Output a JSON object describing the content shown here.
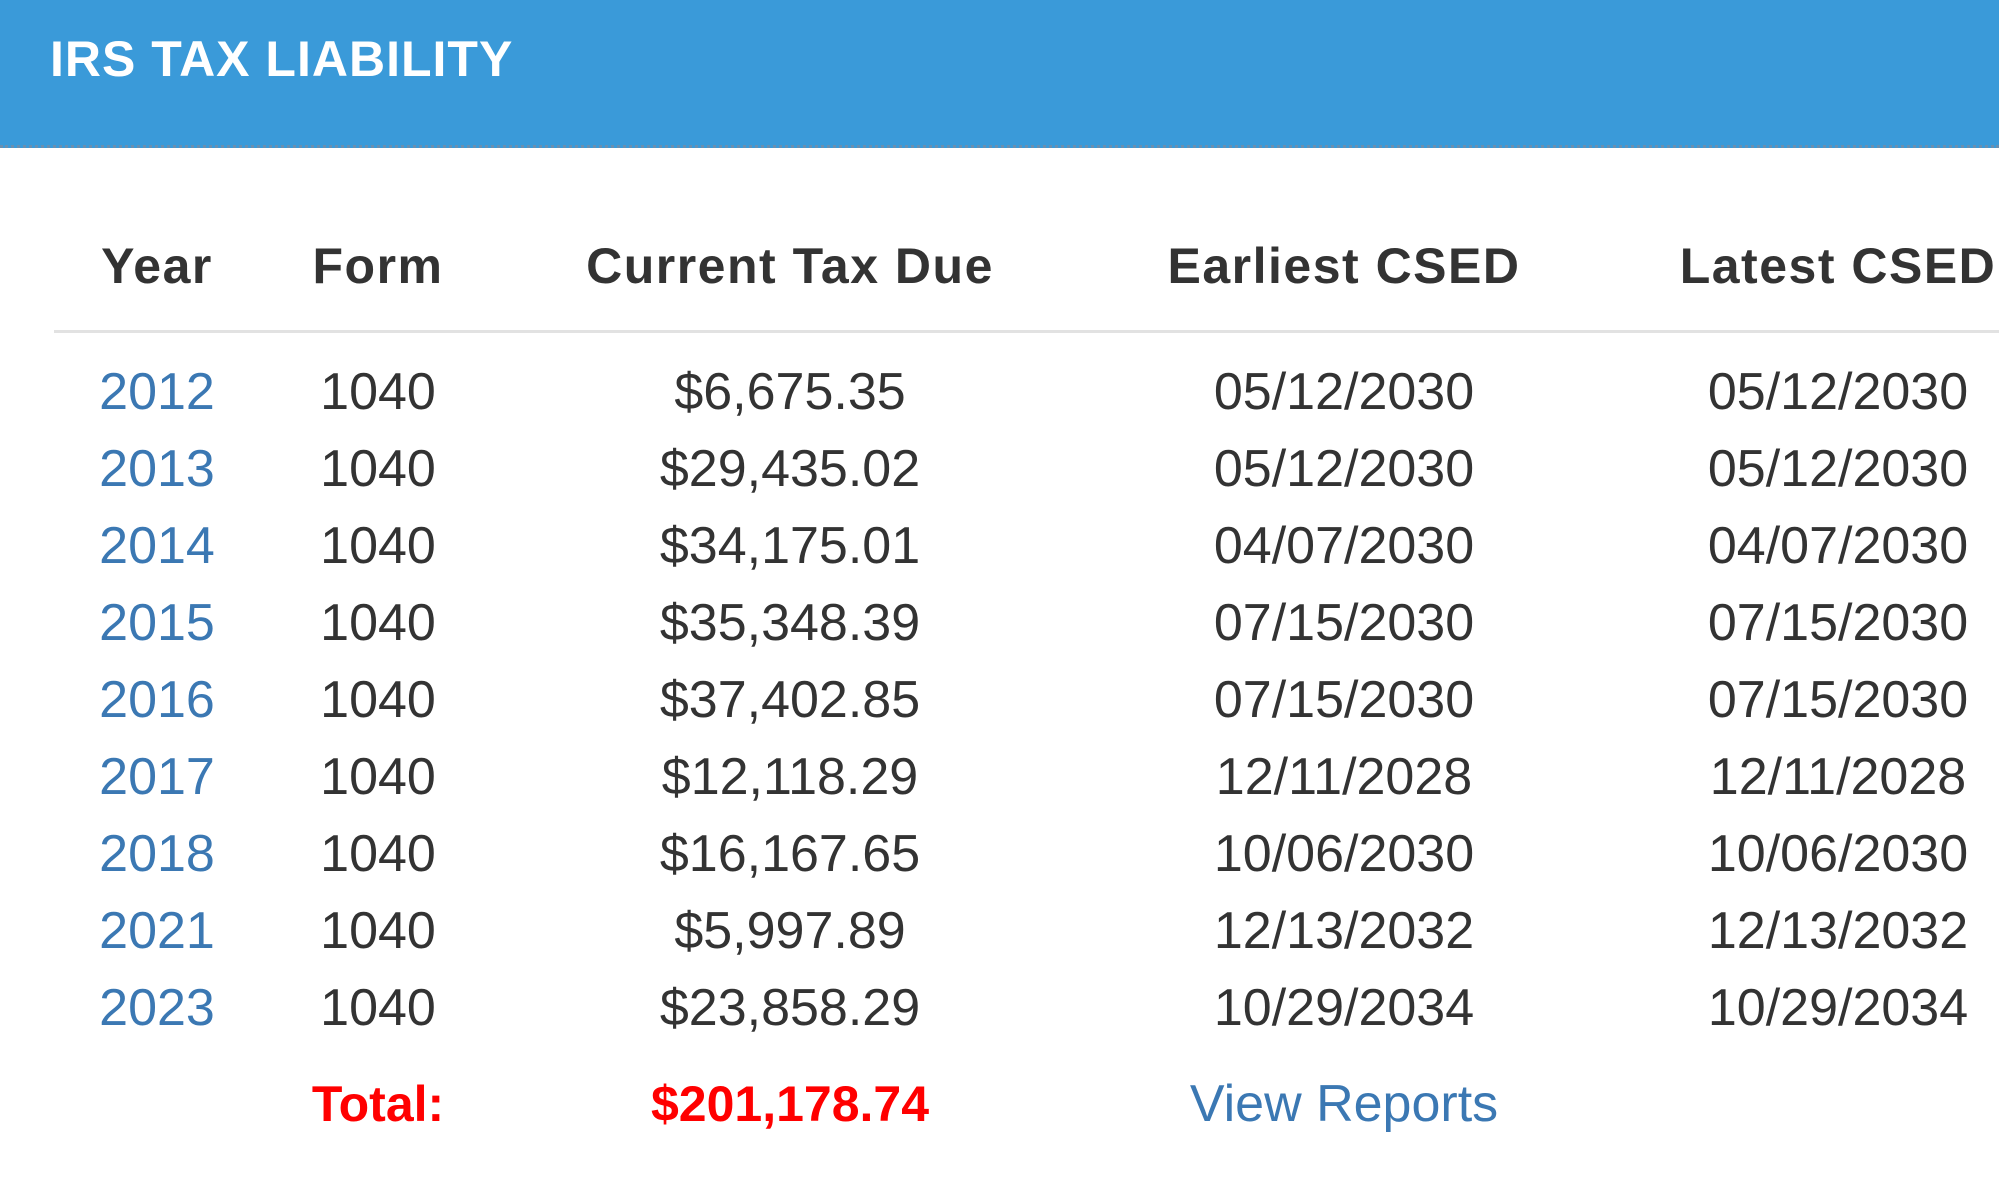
{
  "header": {
    "title": "IRS TAX LIABILITY",
    "background_color": "#3a9ad9"
  },
  "table": {
    "columns": [
      "Year",
      "Form",
      "Current Tax Due",
      "Earliest CSED",
      "Latest CSED"
    ],
    "rows": [
      {
        "year": "2012",
        "form": "1040",
        "due": "$6,675.35",
        "earliest": "05/12/2030",
        "latest": "05/12/2030"
      },
      {
        "year": "2013",
        "form": "1040",
        "due": "$29,435.02",
        "earliest": "05/12/2030",
        "latest": "05/12/2030"
      },
      {
        "year": "2014",
        "form": "1040",
        "due": "$34,175.01",
        "earliest": "04/07/2030",
        "latest": "04/07/2030"
      },
      {
        "year": "2015",
        "form": "1040",
        "due": "$35,348.39",
        "earliest": "07/15/2030",
        "latest": "07/15/2030"
      },
      {
        "year": "2016",
        "form": "1040",
        "due": "$37,402.85",
        "earliest": "07/15/2030",
        "latest": "07/15/2030"
      },
      {
        "year": "2017",
        "form": "1040",
        "due": "$12,118.29",
        "earliest": "12/11/2028",
        "latest": "12/11/2028"
      },
      {
        "year": "2018",
        "form": "1040",
        "due": "$16,167.65",
        "earliest": "10/06/2030",
        "latest": "10/06/2030"
      },
      {
        "year": "2021",
        "form": "1040",
        "due": "$5,997.89",
        "earliest": "12/13/2032",
        "latest": "12/13/2032"
      },
      {
        "year": "2023",
        "form": "1040",
        "due": "$23,858.29",
        "earliest": "10/29/2034",
        "latest": "10/29/2034"
      }
    ],
    "total_label": "Total:",
    "total_value": "$201,178.74",
    "view_reports_label": "View Reports"
  },
  "colors": {
    "link": "#3b78b3",
    "total": "#ff0000",
    "text": "#333333"
  }
}
